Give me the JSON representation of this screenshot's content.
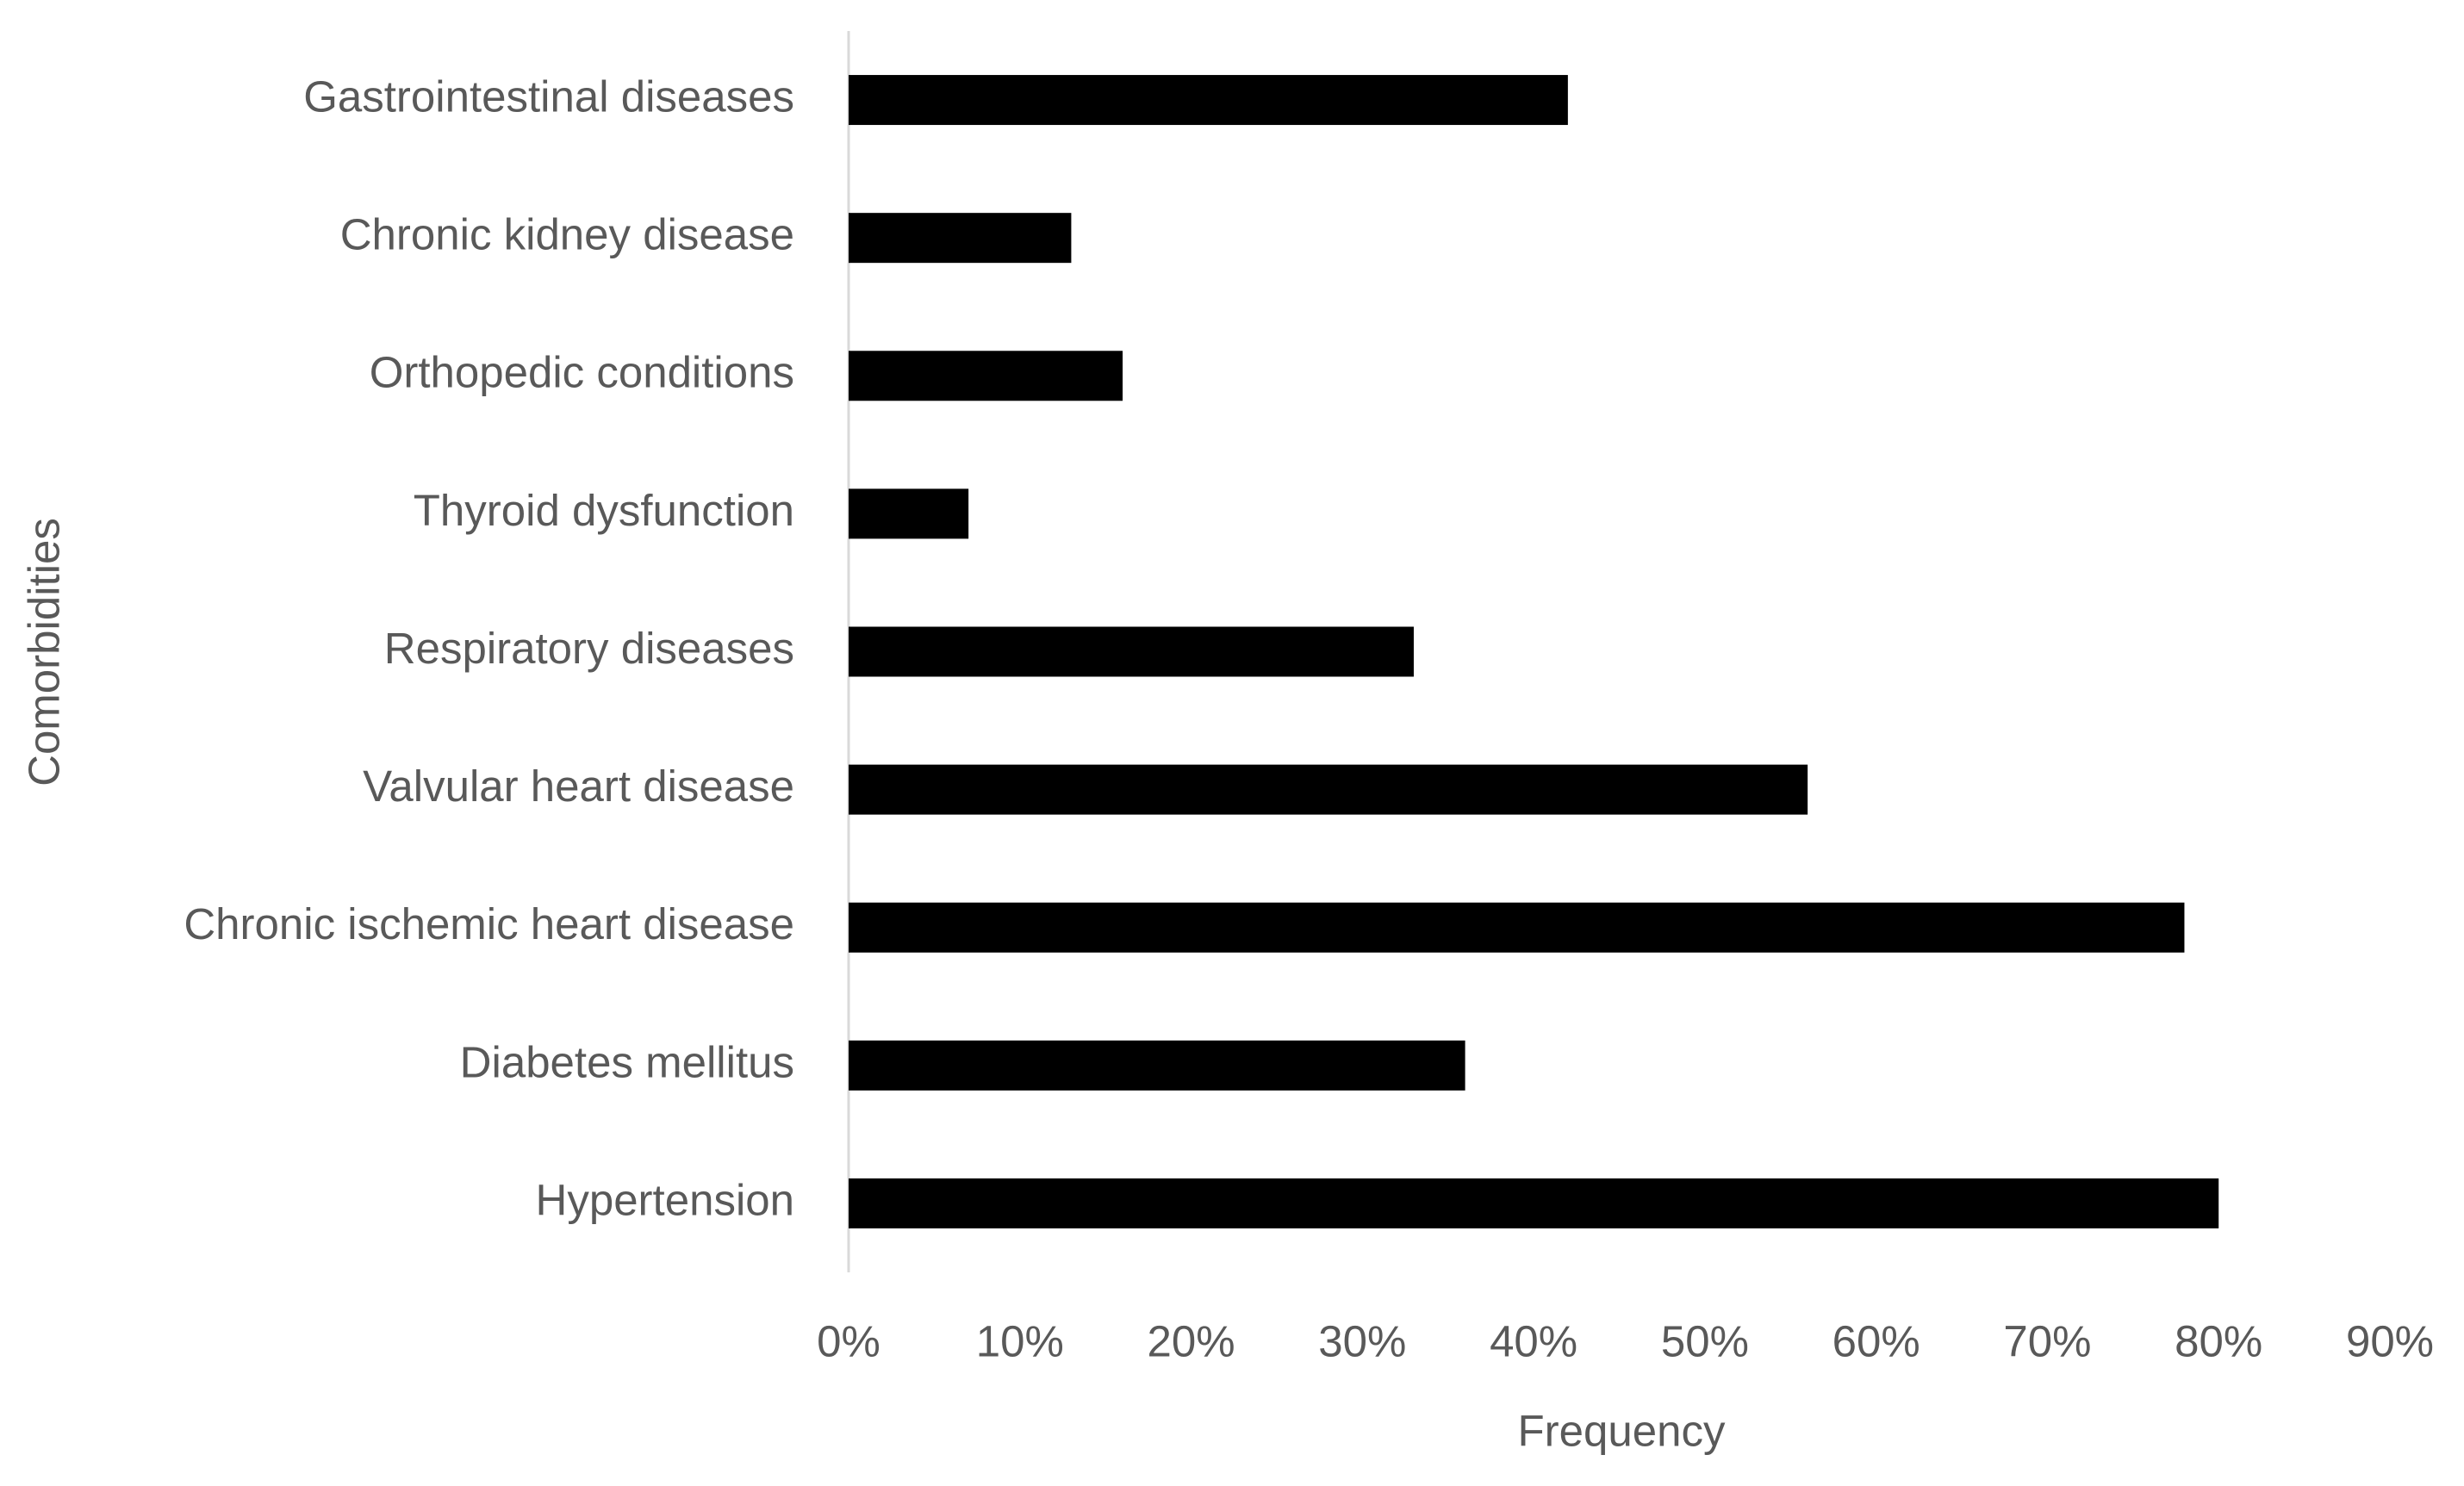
{
  "chart_data": {
    "type": "hbar",
    "x_label": "Frequency",
    "y_label": "Comorbidities",
    "categories": [
      "Gastrointestinal diseases",
      "Chronic kidney disease",
      "Orthopedic conditions",
      "Thyroid dysfunction",
      "Respiratory diseases",
      "Valvular heart disease",
      "Chronic ischemic heart disease",
      "Diabetes mellitus",
      "Hypertension"
    ],
    "values": [
      42,
      13,
      16,
      7,
      33,
      56,
      78,
      36,
      80
    ],
    "color": "#000000",
    "xlim": [
      0,
      90
    ],
    "xticks": [
      {
        "value": 0,
        "label": "0%"
      },
      {
        "value": 10,
        "label": "10%"
      },
      {
        "value": 20,
        "label": "20%"
      },
      {
        "value": 30,
        "label": "30%"
      },
      {
        "value": 40,
        "label": "40%"
      },
      {
        "value": 50,
        "label": "50%"
      },
      {
        "value": 60,
        "label": "60%"
      },
      {
        "value": 70,
        "label": "70%"
      },
      {
        "value": 80,
        "label": "80%"
      },
      {
        "value": 90,
        "label": "90%"
      }
    ],
    "grid": false
  }
}
